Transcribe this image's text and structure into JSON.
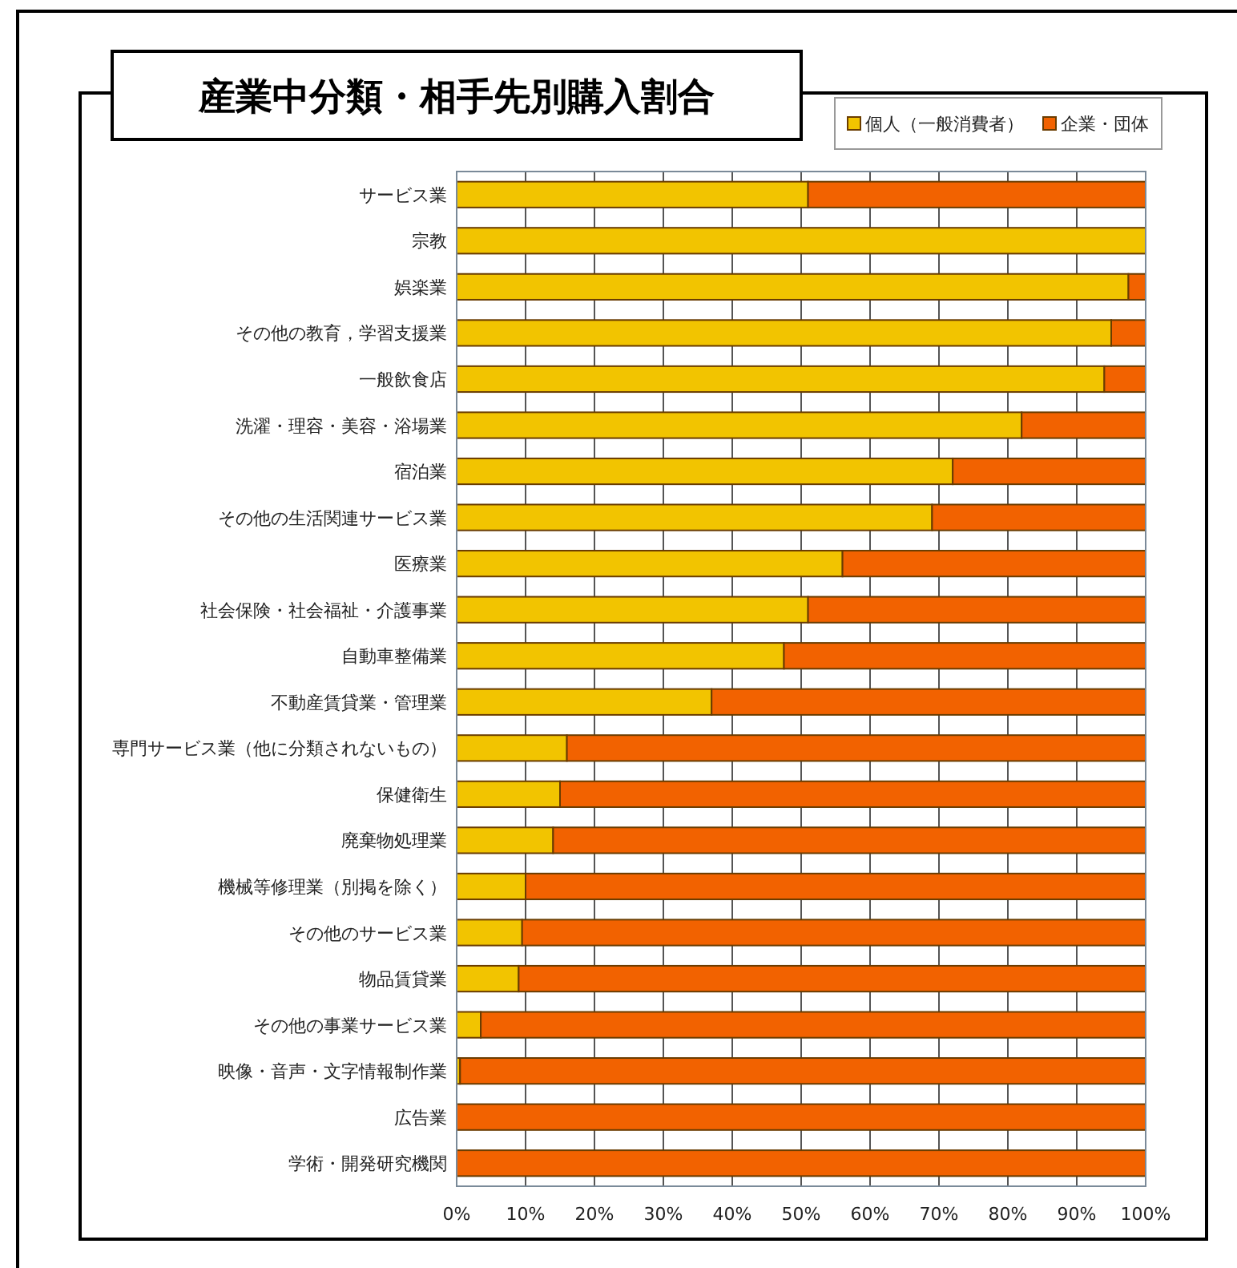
{
  "chart_data": {
    "type": "bar",
    "orientation": "horizontal",
    "stacked": true,
    "title": "産業中分類・相手先別購入割合",
    "categories": [
      "サービス業",
      "宗教",
      "娯楽業",
      "その他の教育，学習支援業",
      "一般飲食店",
      "洗濯・理容・美容・浴場業",
      "宿泊業",
      "その他の生活関連サービス業",
      "医療業",
      "社会保険・社会福祉・介護事業",
      "自動車整備業",
      "不動産賃貸業・管理業",
      "専門サービス業（他に分類されないもの）",
      "保健衛生",
      "廃棄物処理業",
      "機械等修理業（別掲を除く）",
      "その他のサービス業",
      "物品賃貸業",
      "その他の事業サービス業",
      "映像・音声・文字情報制作業",
      "広告業",
      "学術・開発研究機関"
    ],
    "series": [
      {
        "name": "個人（一般消費者）",
        "color": "#f2c400",
        "values": [
          51,
          100,
          97.5,
          95,
          94,
          82,
          72,
          69,
          56,
          51,
          47.5,
          37,
          16,
          15,
          14,
          10,
          9.5,
          9,
          3.5,
          0.5,
          0,
          0
        ]
      },
      {
        "name": "企業・団体",
        "color": "#f26200",
        "values": [
          49,
          0,
          2.5,
          5,
          6,
          18,
          28,
          31,
          44,
          49,
          52.5,
          63,
          84,
          85,
          86,
          90,
          90.5,
          91,
          96.5,
          99.5,
          100,
          100
        ]
      }
    ],
    "xlim": [
      0,
      100
    ],
    "xticks": [
      {
        "value": 0,
        "label": "0%"
      },
      {
        "value": 10,
        "label": "10%"
      },
      {
        "value": 20,
        "label": "20%"
      },
      {
        "value": 30,
        "label": "30%"
      },
      {
        "value": 40,
        "label": "40%"
      },
      {
        "value": 50,
        "label": "50%"
      },
      {
        "value": 60,
        "label": "60%"
      },
      {
        "value": 70,
        "label": "70%"
      },
      {
        "value": 80,
        "label": "80%"
      },
      {
        "value": 90,
        "label": "90%"
      },
      {
        "value": 100,
        "label": "100%"
      }
    ],
    "grid": "x",
    "legend": "top right"
  }
}
